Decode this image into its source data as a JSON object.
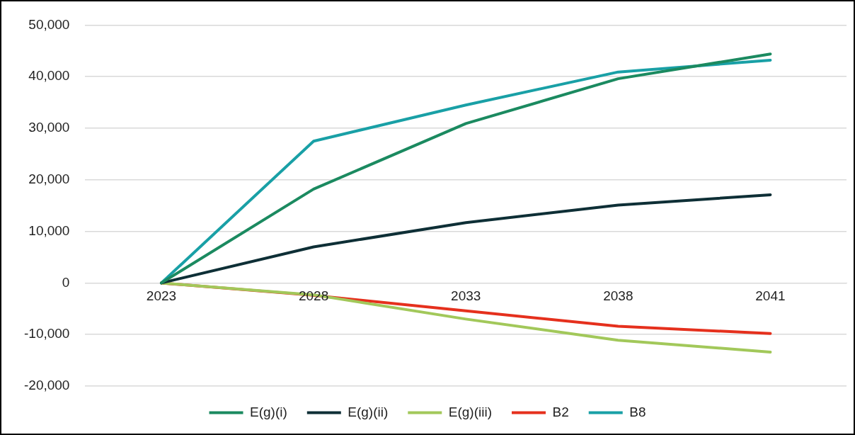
{
  "chart_data": {
    "type": "line",
    "categories": [
      "2023",
      "2028",
      "2033",
      "2038",
      "2041"
    ],
    "series": [
      {
        "name": "E(g)(i)",
        "color": "#1b8a60",
        "values": [
          0,
          18200,
          30900,
          39600,
          44400
        ]
      },
      {
        "name": "E(g)(ii)",
        "color": "#0e2f36",
        "values": [
          0,
          7000,
          11700,
          15100,
          17100
        ]
      },
      {
        "name": "E(g)(iii)",
        "color": "#a2c85a",
        "values": [
          0,
          -2300,
          -7000,
          -11100,
          -13400
        ]
      },
      {
        "name": "B2",
        "color": "#e5301d",
        "values": [
          0,
          -2400,
          -5400,
          -8400,
          -9800
        ]
      },
      {
        "name": "B8",
        "color": "#19a0a6",
        "values": [
          0,
          27500,
          34500,
          40900,
          43200
        ]
      }
    ],
    "ylim": [
      -20000,
      50000
    ],
    "yticks": [
      {
        "value": -20000,
        "label": "-20,000"
      },
      {
        "value": -10000,
        "label": "-10,000"
      },
      0,
      {
        "value": 10000,
        "label": "10,000"
      },
      {
        "value": 20000,
        "label": "20,000"
      },
      {
        "value": 30000,
        "label": "30,000"
      },
      {
        "value": 40000,
        "label": "40,000"
      },
      {
        "value": 50000,
        "label": "50,000"
      }
    ],
    "grid": "y",
    "legend": "bottom",
    "marker": "none",
    "line_style": "solid"
  }
}
